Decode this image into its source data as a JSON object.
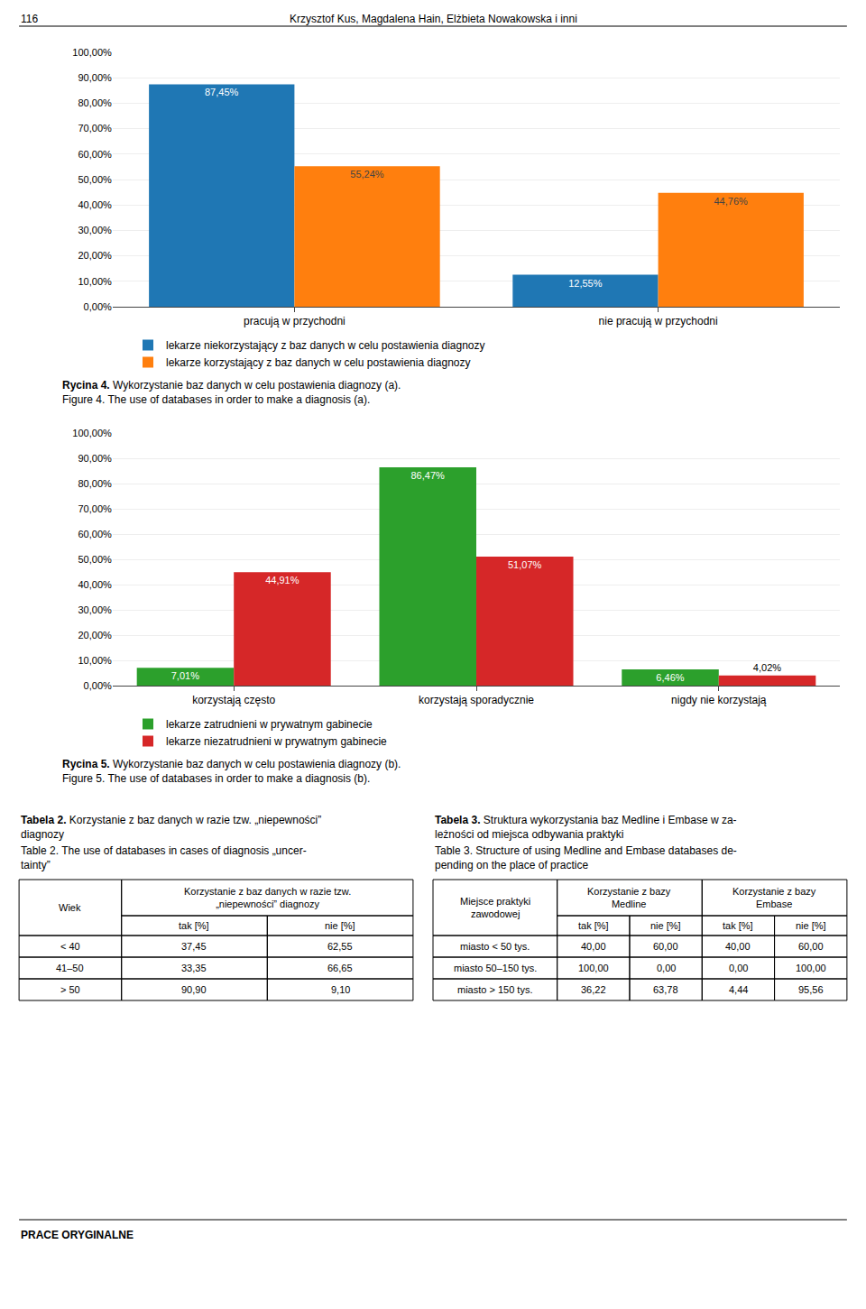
{
  "annotations": [
    "116",
    "Krzysztof Kus, Magdalena Hain, Elżbieta Nowakowska i inni",
    "PRACE ORYGINALNE"
  ],
  "chart_data": [
    {
      "type": "bar",
      "title": "Rycina 4. Wykorzystanie baz danych w celu postawienia diagnozy (a).",
      "subtitle": "Figure 4. The use of databases in order to make a diagnosis (a).",
      "categories": [
        "pracują w przychodni",
        "nie pracują w przychodni"
      ],
      "series": [
        {
          "name": "lekarze niekorzystający z baz danych w celu postawienia diagnozy",
          "values": [
            87.45,
            12.55
          ],
          "value_labels": [
            "87,45%",
            "12,55%"
          ]
        },
        {
          "name": "lekarze korzystający z baz danych w celu postawienia diagnozy",
          "values": [
            55.24,
            44.76
          ],
          "value_labels": [
            "55,24%",
            "44,76%"
          ]
        }
      ],
      "ylim": [
        0,
        100
      ],
      "yticks": [
        {
          "value": 0,
          "label": "0,00%"
        },
        {
          "value": 10,
          "label": "10,00%"
        },
        {
          "value": 20,
          "label": "20,00%"
        },
        {
          "value": 30,
          "label": "30,00%"
        },
        {
          "value": 40,
          "label": "40,00%"
        },
        {
          "value": 50,
          "label": "50,00%"
        },
        {
          "value": 60,
          "label": "60,00%"
        },
        {
          "value": 70,
          "label": "70,00%"
        },
        {
          "value": 80,
          "label": "80,00%"
        },
        {
          "value": 90,
          "label": "90,00%"
        },
        {
          "value": 100,
          "label": "100,00%"
        }
      ],
      "grid": true,
      "data_labels": true,
      "legend": "bottom"
    },
    {
      "type": "bar",
      "title": "Rycina 5. Wykorzystanie baz danych w celu postawienia diagnozy (b).",
      "subtitle": "Figure 5. The use of databases in order to make a diagnosis (b).",
      "categories": [
        "korzystają często",
        "korzystają sporadycznie",
        "nigdy nie korzystają"
      ],
      "series": [
        {
          "name": "lekarze zatrudnieni w prywatnym gabinecie",
          "values": [
            7.01,
            86.47,
            6.46
          ],
          "value_labels": [
            "7,01%",
            "86,47%",
            "6,46%"
          ]
        },
        {
          "name": "lekarze niezatrudnieni w prywatnym gabinecie",
          "values": [
            44.91,
            51.07,
            4.02
          ],
          "value_labels": [
            "44,91%",
            "51,07%",
            "4,02%"
          ]
        }
      ],
      "ylim": [
        0,
        100
      ],
      "yticks": [
        {
          "value": 0,
          "label": "0,00%"
        },
        {
          "value": 10,
          "label": "10,00%"
        },
        {
          "value": 20,
          "label": "20,00%"
        },
        {
          "value": 30,
          "label": "30,00%"
        },
        {
          "value": 40,
          "label": "40,00%"
        },
        {
          "value": 50,
          "label": "50,00%"
        },
        {
          "value": 60,
          "label": "60,00%"
        },
        {
          "value": 70,
          "label": "70,00%"
        },
        {
          "value": 80,
          "label": "80,00%"
        },
        {
          "value": 90,
          "label": "90,00%"
        },
        {
          "value": 100,
          "label": "100,00%"
        }
      ],
      "grid": true,
      "data_labels": true,
      "legend": "bottom"
    },
    {
      "type": "table",
      "title": "Tabela 2. Korzystanie z baz danych w razie tzw. „niepewności”\ndiagnozy",
      "subtitle": "Table 2. The use of databases in cases of diagnosis „uncer-\ntainty”",
      "annotations": [
        "Wiek",
        "Korzystanie z baz danych w razie tzw.\n„niepewności” diagnozy"
      ],
      "categories": [
        "< 40",
        "41–50",
        "> 50"
      ],
      "series": [
        {
          "name": "tak [%]",
          "values": [
            37.45,
            33.35,
            90.9
          ],
          "value_labels": [
            "37,45",
            "33,35",
            "90,90"
          ]
        },
        {
          "name": "nie [%]",
          "values": [
            62.55,
            66.65,
            9.1
          ],
          "value_labels": [
            "62,55",
            "66,65",
            "9,10"
          ]
        }
      ]
    },
    {
      "type": "table",
      "title": "Tabela 3. Struktura wykorzystania baz Medline i Embase w za-\nleżności od miejsca odbywania praktyki",
      "subtitle": "Table 3. Structure of using Medline and Embase databases de-\npending on the place of practice",
      "annotations": [
        "Miejsce praktyki\nzawodowej",
        "Korzystanie z bazy\nMedline",
        "Korzystanie z bazy\nEmbase"
      ],
      "categories": [
        "miasto < 50 tys.",
        "miasto 50–150 tys.",
        "miasto > 150 tys."
      ],
      "series": [
        {
          "name": "tak [%]",
          "values": [
            40.0,
            100.0,
            36.22
          ],
          "value_labels": [
            "40,00",
            "100,00",
            "36,22"
          ]
        },
        {
          "name": "nie [%]",
          "values": [
            60.0,
            0.0,
            63.78
          ],
          "value_labels": [
            "60,00",
            "0,00",
            "63,78"
          ]
        },
        {
          "name": "tak [%]",
          "values": [
            40.0,
            0.0,
            4.44
          ],
          "value_labels": [
            "40,00",
            "0,00",
            "4,44"
          ]
        },
        {
          "name": "nie [%]",
          "values": [
            60.0,
            100.0,
            95.56
          ],
          "value_labels": [
            "60,00",
            "100,00",
            "95,56"
          ]
        }
      ]
    }
  ]
}
